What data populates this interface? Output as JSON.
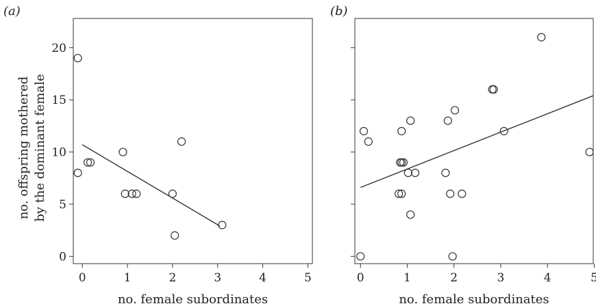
{
  "chart_data": [
    {
      "type": "scatter",
      "panel_label": "(a)",
      "title": "",
      "xlabel": "no. female subordinates",
      "ylabel_lines": [
        "no. offspring mothered",
        "by the dominant female"
      ],
      "xlim": [
        -0.2,
        5.1
      ],
      "ylim": [
        -0.7,
        22.8
      ],
      "xticks": [
        0,
        1,
        2,
        3,
        4,
        5
      ],
      "yticks": [
        0,
        5,
        10,
        15,
        20
      ],
      "show_ytick_labels": true,
      "grid": false,
      "points": [
        {
          "x": -0.1,
          "y": 19
        },
        {
          "x": -0.1,
          "y": 8
        },
        {
          "x": 0.12,
          "y": 9
        },
        {
          "x": 0.18,
          "y": 9
        },
        {
          "x": 0.9,
          "y": 10
        },
        {
          "x": 0.95,
          "y": 6
        },
        {
          "x": 1.1,
          "y": 6
        },
        {
          "x": 1.2,
          "y": 6
        },
        {
          "x": 2.0,
          "y": 6
        },
        {
          "x": 2.2,
          "y": 11
        },
        {
          "x": 2.05,
          "y": 2
        },
        {
          "x": 3.1,
          "y": 3
        }
      ],
      "trend_line": {
        "x": [
          0,
          3.05
        ],
        "y": [
          10.7,
          2.9
        ]
      }
    },
    {
      "type": "scatter",
      "panel_label": "(b)",
      "title": "",
      "xlabel": "no. female subordinates",
      "xlim": [
        -0.12,
        4.98
      ],
      "ylim": [
        -0.7,
        22.8
      ],
      "xticks": [
        0,
        1,
        2,
        3,
        4,
        5
      ],
      "yticks": [
        0,
        5,
        10,
        15,
        20
      ],
      "show_ytick_labels": false,
      "grid": false,
      "points": [
        {
          "x": 0.0,
          "y": 0
        },
        {
          "x": 0.07,
          "y": 12
        },
        {
          "x": 0.17,
          "y": 11
        },
        {
          "x": 0.82,
          "y": 6
        },
        {
          "x": 0.88,
          "y": 6
        },
        {
          "x": 0.85,
          "y": 9
        },
        {
          "x": 0.88,
          "y": 9
        },
        {
          "x": 0.92,
          "y": 9
        },
        {
          "x": 0.88,
          "y": 12
        },
        {
          "x": 1.02,
          "y": 8
        },
        {
          "x": 1.07,
          "y": 13
        },
        {
          "x": 1.07,
          "y": 4
        },
        {
          "x": 1.17,
          "y": 8
        },
        {
          "x": 1.82,
          "y": 8
        },
        {
          "x": 1.87,
          "y": 13
        },
        {
          "x": 1.92,
          "y": 6
        },
        {
          "x": 1.97,
          "y": 0
        },
        {
          "x": 2.02,
          "y": 14
        },
        {
          "x": 2.17,
          "y": 6
        },
        {
          "x": 2.82,
          "y": 16
        },
        {
          "x": 2.85,
          "y": 16
        },
        {
          "x": 3.07,
          "y": 12
        },
        {
          "x": 3.87,
          "y": 21
        },
        {
          "x": 4.9,
          "y": 10
        }
      ],
      "trend_line": {
        "x": [
          0,
          4.98
        ],
        "y": [
          6.6,
          15.4
        ]
      }
    }
  ]
}
